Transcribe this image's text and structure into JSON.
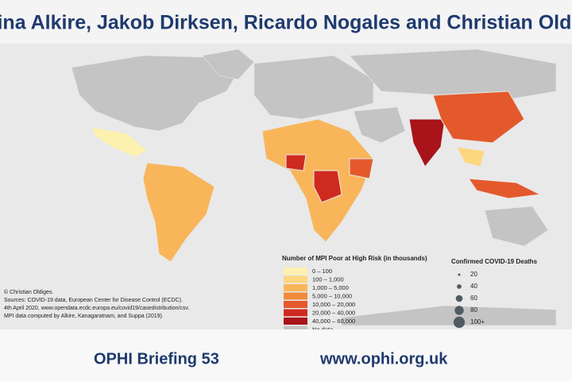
{
  "header": {
    "authors": "Sabina Alkire, Jakob Dirksen, Ricardo Nogales and Christian Oldiges"
  },
  "legend_mpi": {
    "title": "Number of MPI Poor at High Risk (in thousands)",
    "items": [
      {
        "label": "0 – 100",
        "color": "#fdf1b0"
      },
      {
        "label": "100 – 1,000",
        "color": "#fcd77e"
      },
      {
        "label": "1,000 – 5,000",
        "color": "#f9b55a"
      },
      {
        "label": "5,000 – 10,000",
        "color": "#f08b3c"
      },
      {
        "label": "10,000 – 20,000",
        "color": "#e4592c"
      },
      {
        "label": "20,000 – 40,000",
        "color": "#cf2a1f"
      },
      {
        "label": "40,000 – 60,000",
        "color": "#a8141a"
      },
      {
        "label": "No data",
        "color": "#c4c4c4"
      }
    ]
  },
  "legend_deaths": {
    "title": "Confirmed COVID-19 Deaths",
    "color": "#4e5b63",
    "items": [
      "20",
      "40",
      "60",
      "80",
      "100+"
    ]
  },
  "notes": [
    "© Christian Oldiges.",
    "Sources: COVID-19 data, European Center for Disease Control (ECDC).",
    "4th April 2020, www.opendata.ecdc.europa.eu/covid19/casedistribution/csv.",
    "MPI data computed by Alkire, Kanagaratnam, and Suppa (2019)."
  ],
  "footer": {
    "left": "OPHI Briefing 53",
    "right": "www.ophi.org.uk"
  }
}
